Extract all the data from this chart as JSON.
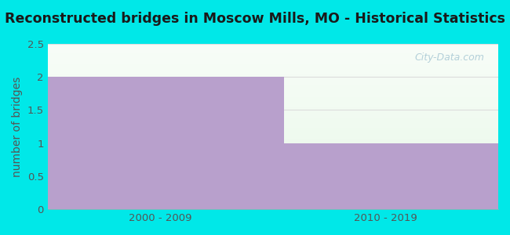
{
  "title": "Reconstructed bridges in Moscow Mills, MO - Historical Statistics",
  "categories": [
    "2000 - 2009",
    "2010 - 2019"
  ],
  "values": [
    2,
    1
  ],
  "bar_color": "#b8a0cc",
  "ylabel": "number of bridges",
  "ylim": [
    0,
    2.5
  ],
  "yticks": [
    0,
    0.5,
    1,
    1.5,
    2,
    2.5
  ],
  "title_fontsize": 12.5,
  "label_fontsize": 10,
  "tick_fontsize": 9.5,
  "background_outer": "#00e8e8",
  "bar_width": 0.55,
  "watermark": "City-Data.com",
  "title_color": "#1a1a1a",
  "axis_label_color": "#555555",
  "tick_label_color": "#555555",
  "grid_color": "#dddddd"
}
